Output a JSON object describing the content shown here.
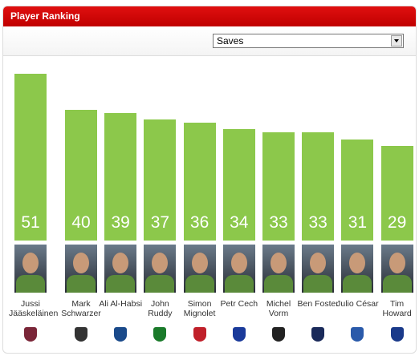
{
  "header": {
    "title": "Player Ranking"
  },
  "dropdown": {
    "selected": "Saves"
  },
  "chart_data": {
    "type": "bar",
    "categories": [
      "Jussi Jääskeläinen",
      "Mark Schwarzer",
      "Ali Al-Habsi",
      "John Ruddy",
      "Simon Mignolet",
      "Petr Cech",
      "Michel Vorm",
      "Ben Foster",
      "Julio César",
      "Tim Howard"
    ],
    "values": [
      51,
      40,
      39,
      37,
      36,
      34,
      33,
      33,
      31,
      29
    ],
    "color": "#8cc84b"
  }
}
